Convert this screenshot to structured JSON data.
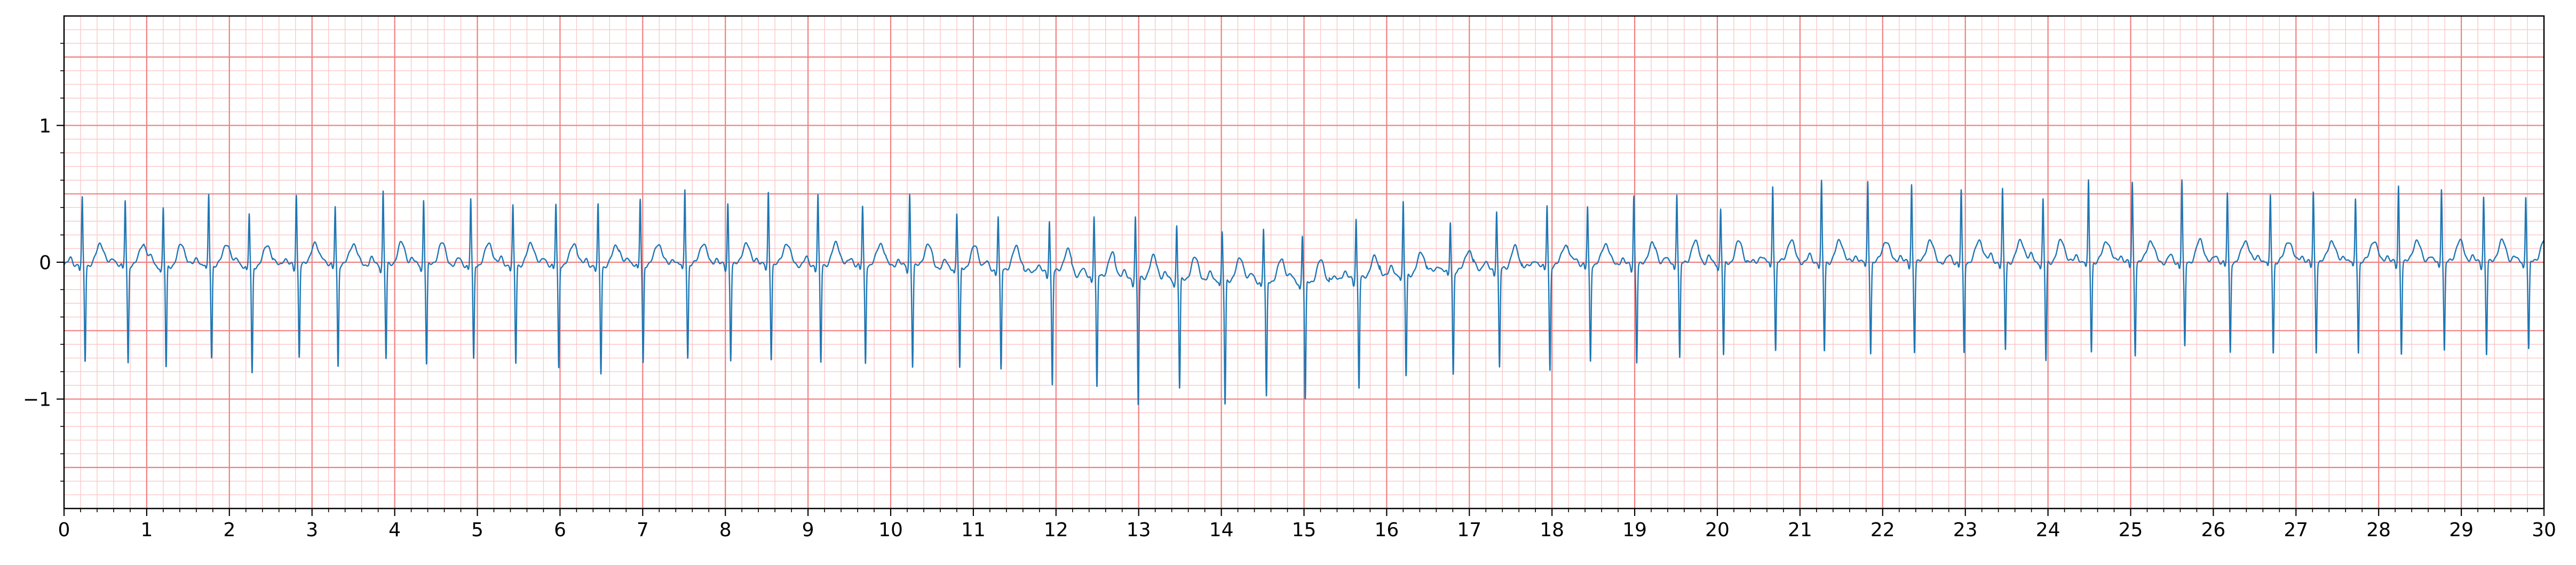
{
  "chart_data": {
    "type": "line",
    "title": "",
    "xlabel": "",
    "ylabel": "",
    "xlim": [
      0,
      30
    ],
    "ylim": [
      -1.8,
      1.8
    ],
    "x_ticks": [
      "0",
      "1",
      "2",
      "3",
      "4",
      "5",
      "6",
      "7",
      "8",
      "9",
      "10",
      "11",
      "12",
      "13",
      "14",
      "15",
      "16",
      "17",
      "18",
      "19",
      "20",
      "21",
      "22",
      "23",
      "24",
      "25",
      "26",
      "27",
      "28",
      "29",
      "30"
    ],
    "y_ticks": [
      {
        "value": 1,
        "label": "1"
      },
      {
        "value": 0,
        "label": "0"
      },
      {
        "value": -1,
        "label": "−1"
      }
    ],
    "grid": {
      "major_x_step": 1,
      "minor_x_step": 0.2,
      "major_y_step": 0.5,
      "minor_y_step": 0.1,
      "major_color": "#f08080",
      "minor_color": "#fbc8c8"
    },
    "series": [
      {
        "color": "#1f77b4",
        "beats": [
          {
            "t": 0.22,
            "r": 0.48,
            "s": -0.7,
            "b": -0.02
          },
          {
            "t": 0.74,
            "r": 0.47,
            "s": -0.72,
            "b": -0.02
          },
          {
            "t": 1.2,
            "r": 0.42,
            "s": -0.75,
            "b": -0.03
          },
          {
            "t": 1.75,
            "r": 0.51,
            "s": -0.68,
            "b": -0.02
          },
          {
            "t": 2.24,
            "r": 0.38,
            "s": -0.79,
            "b": -0.03
          },
          {
            "t": 2.81,
            "r": 0.52,
            "s": -0.67,
            "b": -0.02
          },
          {
            "t": 3.28,
            "r": 0.43,
            "s": -0.74,
            "b": -0.02
          },
          {
            "t": 3.86,
            "r": 0.54,
            "s": -0.69,
            "b": -0.02
          },
          {
            "t": 4.35,
            "r": 0.48,
            "s": -0.73,
            "b": -0.02
          },
          {
            "t": 4.92,
            "r": 0.48,
            "s": -0.7,
            "b": -0.02
          },
          {
            "t": 5.43,
            "r": 0.42,
            "s": -0.72,
            "b": -0.02
          },
          {
            "t": 5.95,
            "r": 0.44,
            "s": -0.76,
            "b": -0.02
          },
          {
            "t": 6.46,
            "r": 0.44,
            "s": -0.78,
            "b": -0.03
          },
          {
            "t": 6.97,
            "r": 0.48,
            "s": -0.72,
            "b": -0.02
          },
          {
            "t": 7.51,
            "r": 0.56,
            "s": -0.68,
            "b": -0.02
          },
          {
            "t": 8.03,
            "r": 0.45,
            "s": -0.69,
            "b": -0.02
          },
          {
            "t": 8.52,
            "r": 0.53,
            "s": -0.68,
            "b": -0.02
          },
          {
            "t": 9.12,
            "r": 0.5,
            "s": -0.72,
            "b": -0.02
          },
          {
            "t": 9.66,
            "r": 0.42,
            "s": -0.72,
            "b": -0.02
          },
          {
            "t": 10.23,
            "r": 0.53,
            "s": -0.73,
            "b": -0.03
          },
          {
            "t": 10.8,
            "r": 0.39,
            "s": -0.75,
            "b": -0.04
          },
          {
            "t": 11.3,
            "r": 0.38,
            "s": -0.75,
            "b": -0.05
          },
          {
            "t": 11.92,
            "r": 0.38,
            "s": -0.83,
            "b": -0.07
          },
          {
            "t": 12.46,
            "r": 0.44,
            "s": -0.83,
            "b": -0.1
          },
          {
            "t": 12.96,
            "r": 0.45,
            "s": -0.93,
            "b": -0.12
          },
          {
            "t": 13.46,
            "r": 0.4,
            "s": -0.8,
            "b": -0.13
          },
          {
            "t": 14.01,
            "r": 0.34,
            "s": -0.92,
            "b": -0.13
          },
          {
            "t": 14.51,
            "r": 0.38,
            "s": -0.86,
            "b": -0.14
          },
          {
            "t": 14.98,
            "r": 0.35,
            "s": -0.87,
            "b": -0.15
          },
          {
            "t": 15.63,
            "r": 0.44,
            "s": -0.8,
            "b": -0.12
          },
          {
            "t": 16.2,
            "r": 0.52,
            "s": -0.75,
            "b": -0.09
          },
          {
            "t": 16.77,
            "r": 0.37,
            "s": -0.75,
            "b": -0.07
          },
          {
            "t": 17.33,
            "r": 0.43,
            "s": -0.73,
            "b": -0.05
          },
          {
            "t": 17.94,
            "r": 0.45,
            "s": -0.76,
            "b": -0.03
          },
          {
            "t": 18.43,
            "r": 0.42,
            "s": -0.7,
            "b": -0.02
          },
          {
            "t": 18.99,
            "r": 0.51,
            "s": -0.71,
            "b": -0.02
          },
          {
            "t": 19.51,
            "r": 0.52,
            "s": -0.7,
            "b": -0.01
          },
          {
            "t": 20.04,
            "r": 0.4,
            "s": -0.68,
            "b": -0.01
          },
          {
            "t": 20.67,
            "r": 0.57,
            "s": -0.65,
            "b": 0.0
          },
          {
            "t": 21.26,
            "r": 0.58,
            "s": -0.65,
            "b": 0.0
          },
          {
            "t": 21.82,
            "r": 0.59,
            "s": -0.66,
            "b": 0.0
          },
          {
            "t": 22.35,
            "r": 0.57,
            "s": -0.65,
            "b": 0.0
          },
          {
            "t": 22.95,
            "r": 0.52,
            "s": -0.67,
            "b": 0.0
          },
          {
            "t": 23.45,
            "r": 0.52,
            "s": -0.64,
            "b": 0.0
          },
          {
            "t": 23.94,
            "r": 0.45,
            "s": -0.73,
            "b": 0.0
          },
          {
            "t": 24.49,
            "r": 0.59,
            "s": -0.65,
            "b": 0.0
          },
          {
            "t": 25.02,
            "r": 0.58,
            "s": -0.67,
            "b": 0.0
          },
          {
            "t": 25.62,
            "r": 0.6,
            "s": -0.63,
            "b": 0.0
          },
          {
            "t": 26.17,
            "r": 0.5,
            "s": -0.66,
            "b": 0.0
          },
          {
            "t": 26.69,
            "r": 0.49,
            "s": -0.66,
            "b": 0.0
          },
          {
            "t": 27.21,
            "r": 0.51,
            "s": -0.65,
            "b": 0.0
          },
          {
            "t": 27.72,
            "r": 0.47,
            "s": -0.66,
            "b": 0.0
          },
          {
            "t": 28.24,
            "r": 0.56,
            "s": -0.66,
            "b": 0.0
          },
          {
            "t": 28.76,
            "r": 0.55,
            "s": -0.65,
            "b": 0.0
          },
          {
            "t": 29.27,
            "r": 0.48,
            "s": -0.67,
            "b": 0.0
          },
          {
            "t": 29.78,
            "r": 0.49,
            "s": -0.64,
            "b": 0.0
          }
        ]
      }
    ]
  }
}
